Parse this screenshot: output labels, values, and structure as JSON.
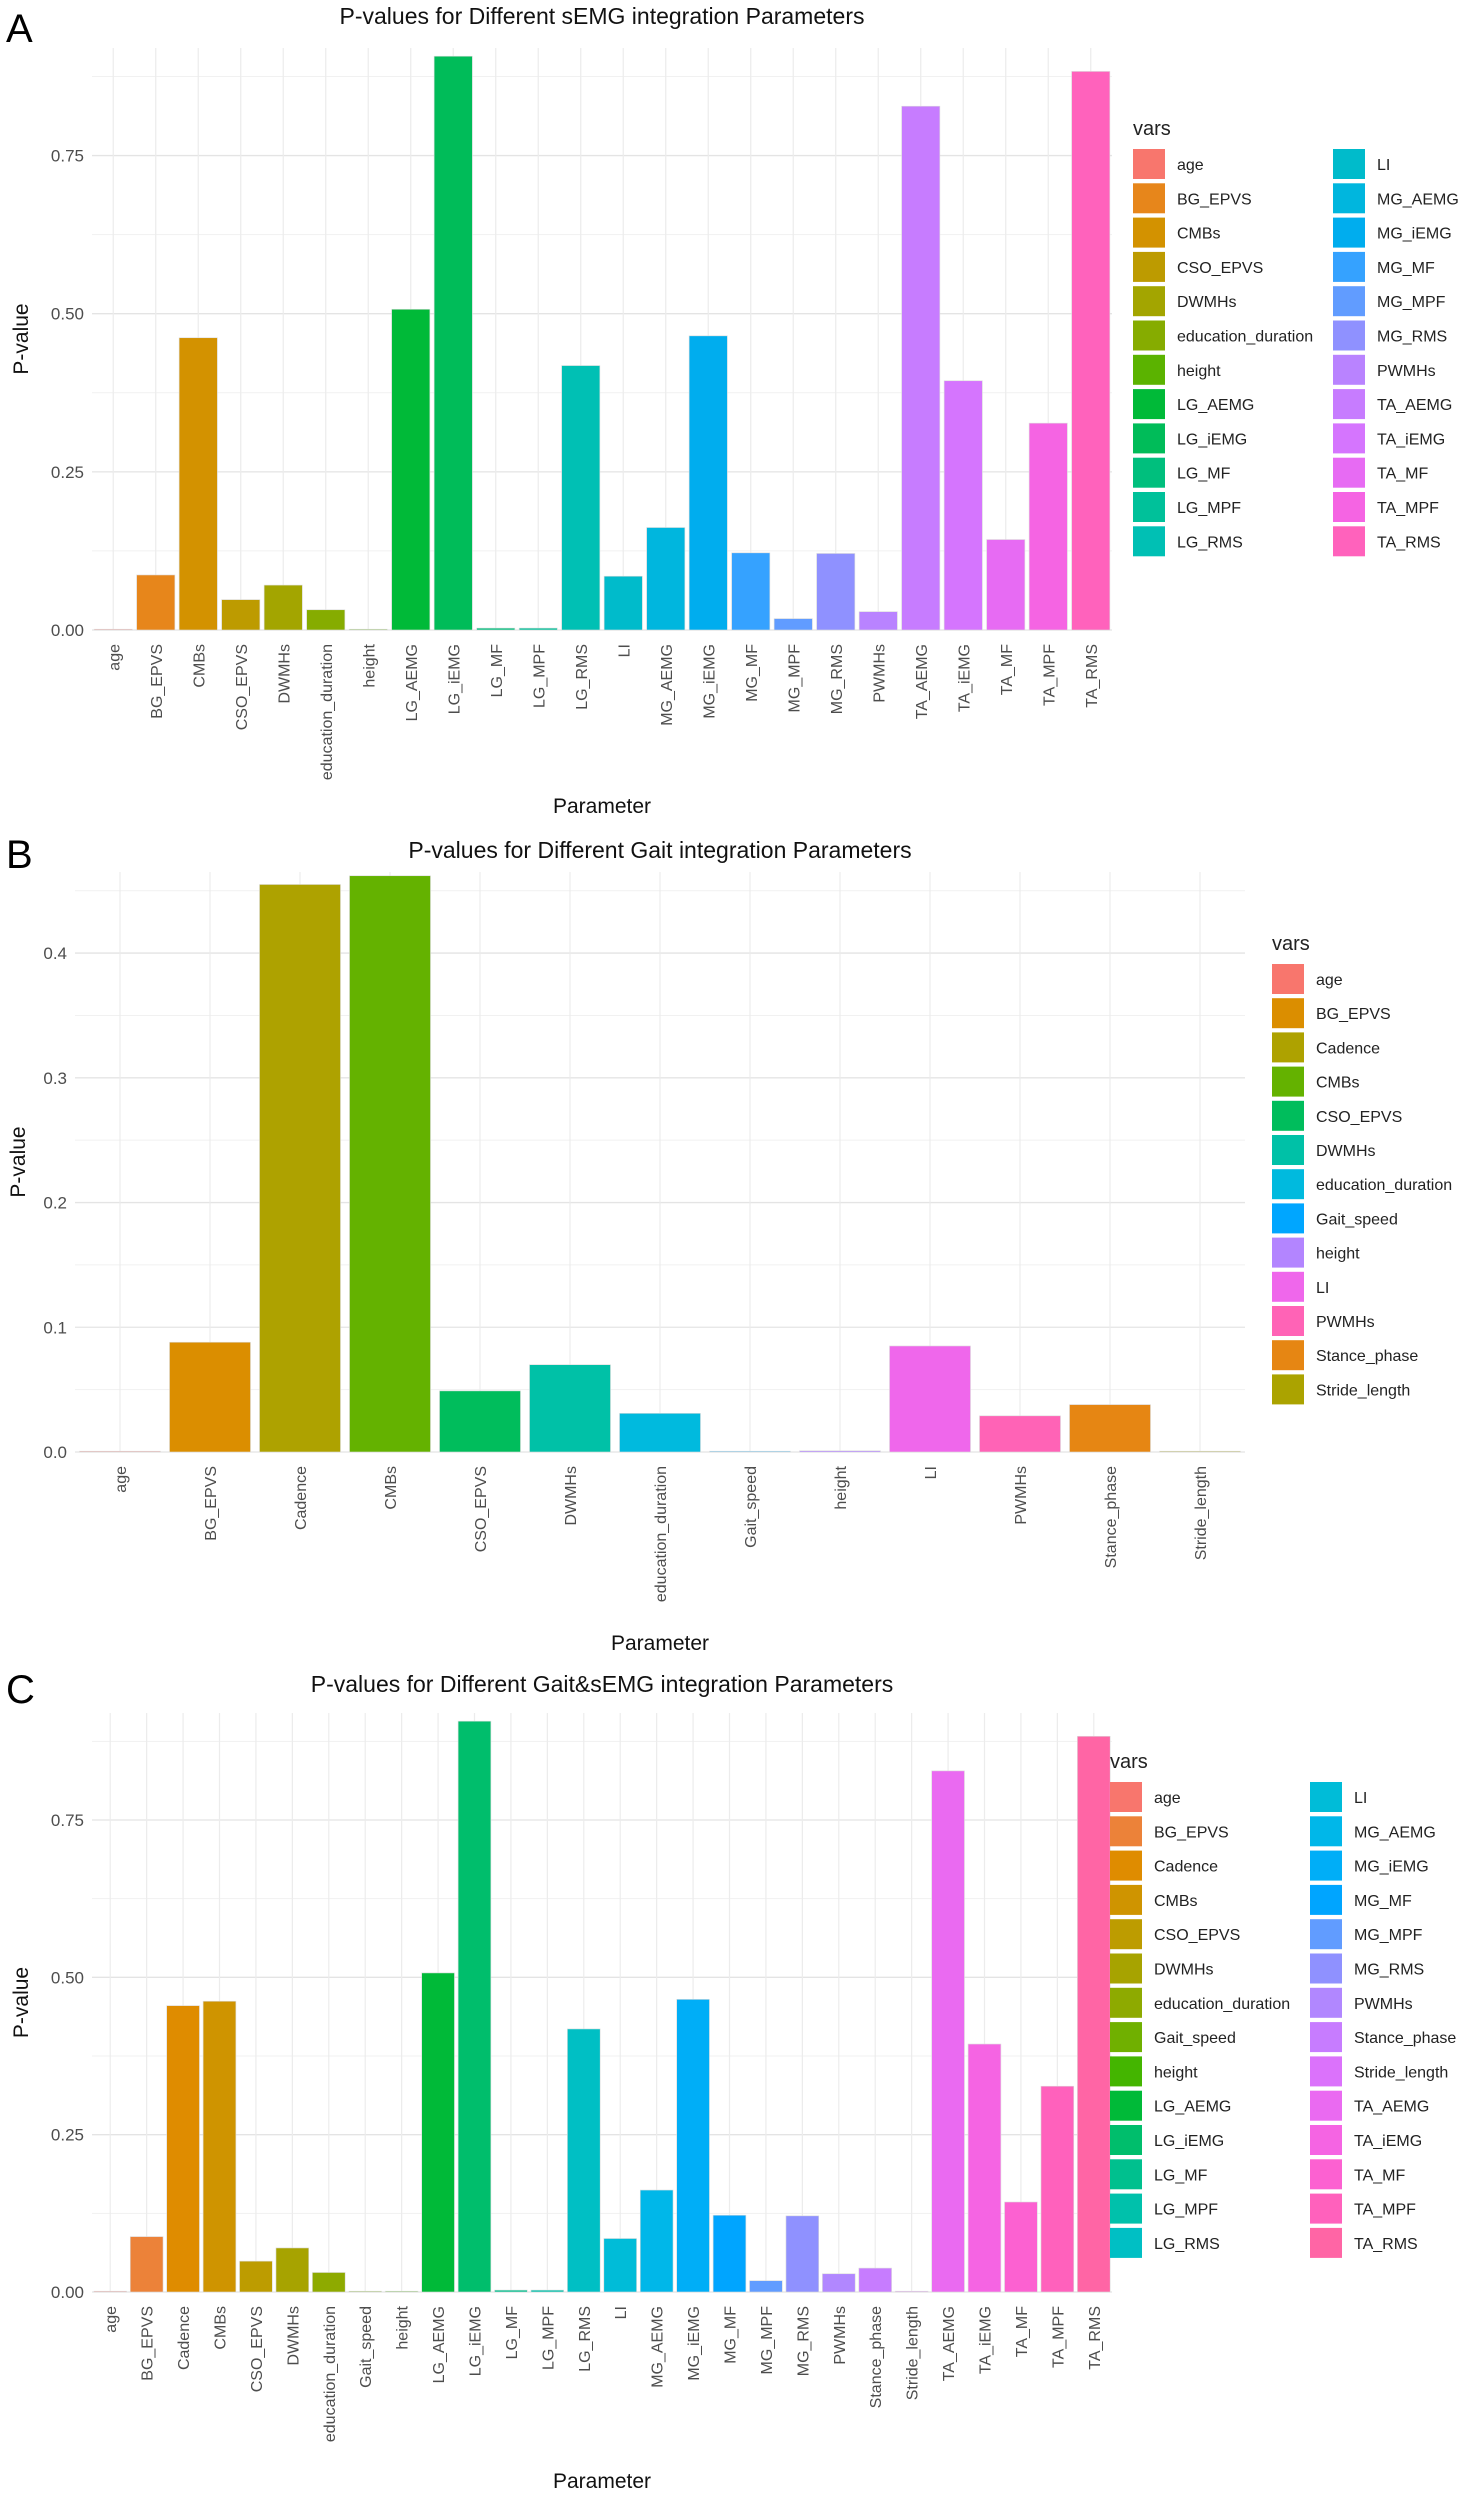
{
  "chart_data": [
    {
      "panel": "A",
      "type": "bar",
      "title": "P-values for Different sEMG integration Parameters",
      "xlabel": "Parameter",
      "ylabel": "P-value",
      "ylim": [
        0,
        0.92
      ],
      "yticks": [
        "0.00",
        "0.25",
        "0.50",
        "0.75"
      ],
      "ytick_values": [
        0,
        0.25,
        0.5,
        0.75
      ],
      "legend_title": "vars",
      "legend_position": "right",
      "grid": true,
      "categories": [
        "age",
        "BG_EPVS",
        "CMBs",
        "CSO_EPVS",
        "DWMHs",
        "education_duration",
        "height",
        "LG_AEMG",
        "LG_iEMG",
        "LG_MF",
        "LG_MPF",
        "LG_RMS",
        "LI",
        "MG_AEMG",
        "MG_iEMG",
        "MG_MF",
        "MG_MPF",
        "MG_RMS",
        "PWMHs",
        "TA_AEMG",
        "TA_iEMG",
        "TA_MF",
        "TA_MPF",
        "TA_RMS"
      ],
      "values": [
        0.0,
        0.087,
        0.462,
        0.048,
        0.071,
        0.032,
        0.001,
        0.507,
        0.907,
        0.003,
        0.003,
        0.418,
        0.085,
        0.162,
        0.465,
        0.122,
        0.018,
        0.121,
        0.029,
        0.828,
        0.394,
        0.143,
        0.327,
        0.883
      ],
      "colors": [
        "#F8766D",
        "#E7861B",
        "#D39200",
        "#BD9B00",
        "#A3A500",
        "#86AC00",
        "#5BB300",
        "#00BA38",
        "#00BC59",
        "#00BF7D",
        "#00C19A",
        "#00C0B4",
        "#00BBCB",
        "#00B6DE",
        "#00ADEE",
        "#35A2FF",
        "#619CFF",
        "#8F91FF",
        "#B983FF",
        "#C77CFF",
        "#D575FE",
        "#E76BF3",
        "#F564E3",
        "#FF62BC"
      ]
    },
    {
      "panel": "B",
      "type": "bar",
      "title": "P-values for Different Gait integration Parameters",
      "xlabel": "Parameter",
      "ylabel": "P-value",
      "ylim": [
        0,
        0.465
      ],
      "yticks": [
        "0.0",
        "0.1",
        "0.2",
        "0.3",
        "0.4"
      ],
      "ytick_values": [
        0,
        0.1,
        0.2,
        0.3,
        0.4
      ],
      "legend_title": "vars",
      "legend_position": "right",
      "grid": true,
      "categories": [
        "age",
        "BG_EPVS",
        "Cadence",
        "CMBs",
        "CSO_EPVS",
        "DWMHs",
        "education_duration",
        "Gait_speed",
        "height",
        "LI",
        "PWMHs",
        "Stance_phase",
        "Stride_length"
      ],
      "values": [
        0.0,
        0.088,
        0.455,
        0.462,
        0.049,
        0.07,
        0.031,
        0.0,
        0.001,
        0.085,
        0.029,
        0.038,
        0.0
      ],
      "colors": [
        "#F8766D",
        "#DB8E00",
        "#AEA200",
        "#64B200",
        "#00BD5C",
        "#00C1A7",
        "#00BADE",
        "#00A6FF",
        "#B385FF",
        "#EF67EB",
        "#FF63B6",
        "#E68613",
        "#ABA300"
      ]
    },
    {
      "panel": "C",
      "type": "bar",
      "title": "P-values for Different Gait&sEMG integration Parameters",
      "xlabel": "Parameter",
      "ylabel": "P-value",
      "ylim": [
        0,
        0.92
      ],
      "yticks": [
        "0.00",
        "0.25",
        "0.50",
        "0.75"
      ],
      "ytick_values": [
        0,
        0.25,
        0.5,
        0.75
      ],
      "legend_title": "vars",
      "legend_position": "right",
      "grid": true,
      "categories": [
        "age",
        "BG_EPVS",
        "Cadence",
        "CMBs",
        "CSO_EPVS",
        "DWMHs",
        "education_duration",
        "Gait_speed",
        "height",
        "LG_AEMG",
        "LG_iEMG",
        "LG_MF",
        "LG_MPF",
        "LG_RMS",
        "LI",
        "MG_AEMG",
        "MG_iEMG",
        "MG_MF",
        "MG_MPF",
        "MG_RMS",
        "PWMHs",
        "Stance_phase",
        "Stride_length",
        "TA_AEMG",
        "TA_iEMG",
        "TA_MF",
        "TA_MPF",
        "TA_RMS"
      ],
      "values": [
        0.0,
        0.088,
        0.455,
        0.462,
        0.049,
        0.07,
        0.031,
        0.0,
        0.001,
        0.507,
        0.907,
        0.003,
        0.003,
        0.418,
        0.085,
        0.162,
        0.465,
        0.122,
        0.018,
        0.121,
        0.029,
        0.038,
        0.0,
        0.828,
        0.394,
        0.143,
        0.327,
        0.883
      ],
      "colors": [
        "#F8766D",
        "#EC8239",
        "#DF8C00",
        "#CF9400",
        "#BD9C00",
        "#A7A300",
        "#8EAA00",
        "#70B000",
        "#44B500",
        "#00BA38",
        "#00BE6C",
        "#00C08E",
        "#00C1AB",
        "#00BFC4",
        "#00BCD8",
        "#00B7E9",
        "#00AEF7",
        "#00A5FF",
        "#619CFF",
        "#8F91FF",
        "#B187FF",
        "#C77CFF",
        "#DB72FB",
        "#EA6AF1",
        "#F564E3",
        "#FC61D1",
        "#FF61BC",
        "#FF65A5"
      ]
    }
  ],
  "panel_labels": [
    "A",
    "B",
    "C"
  ]
}
